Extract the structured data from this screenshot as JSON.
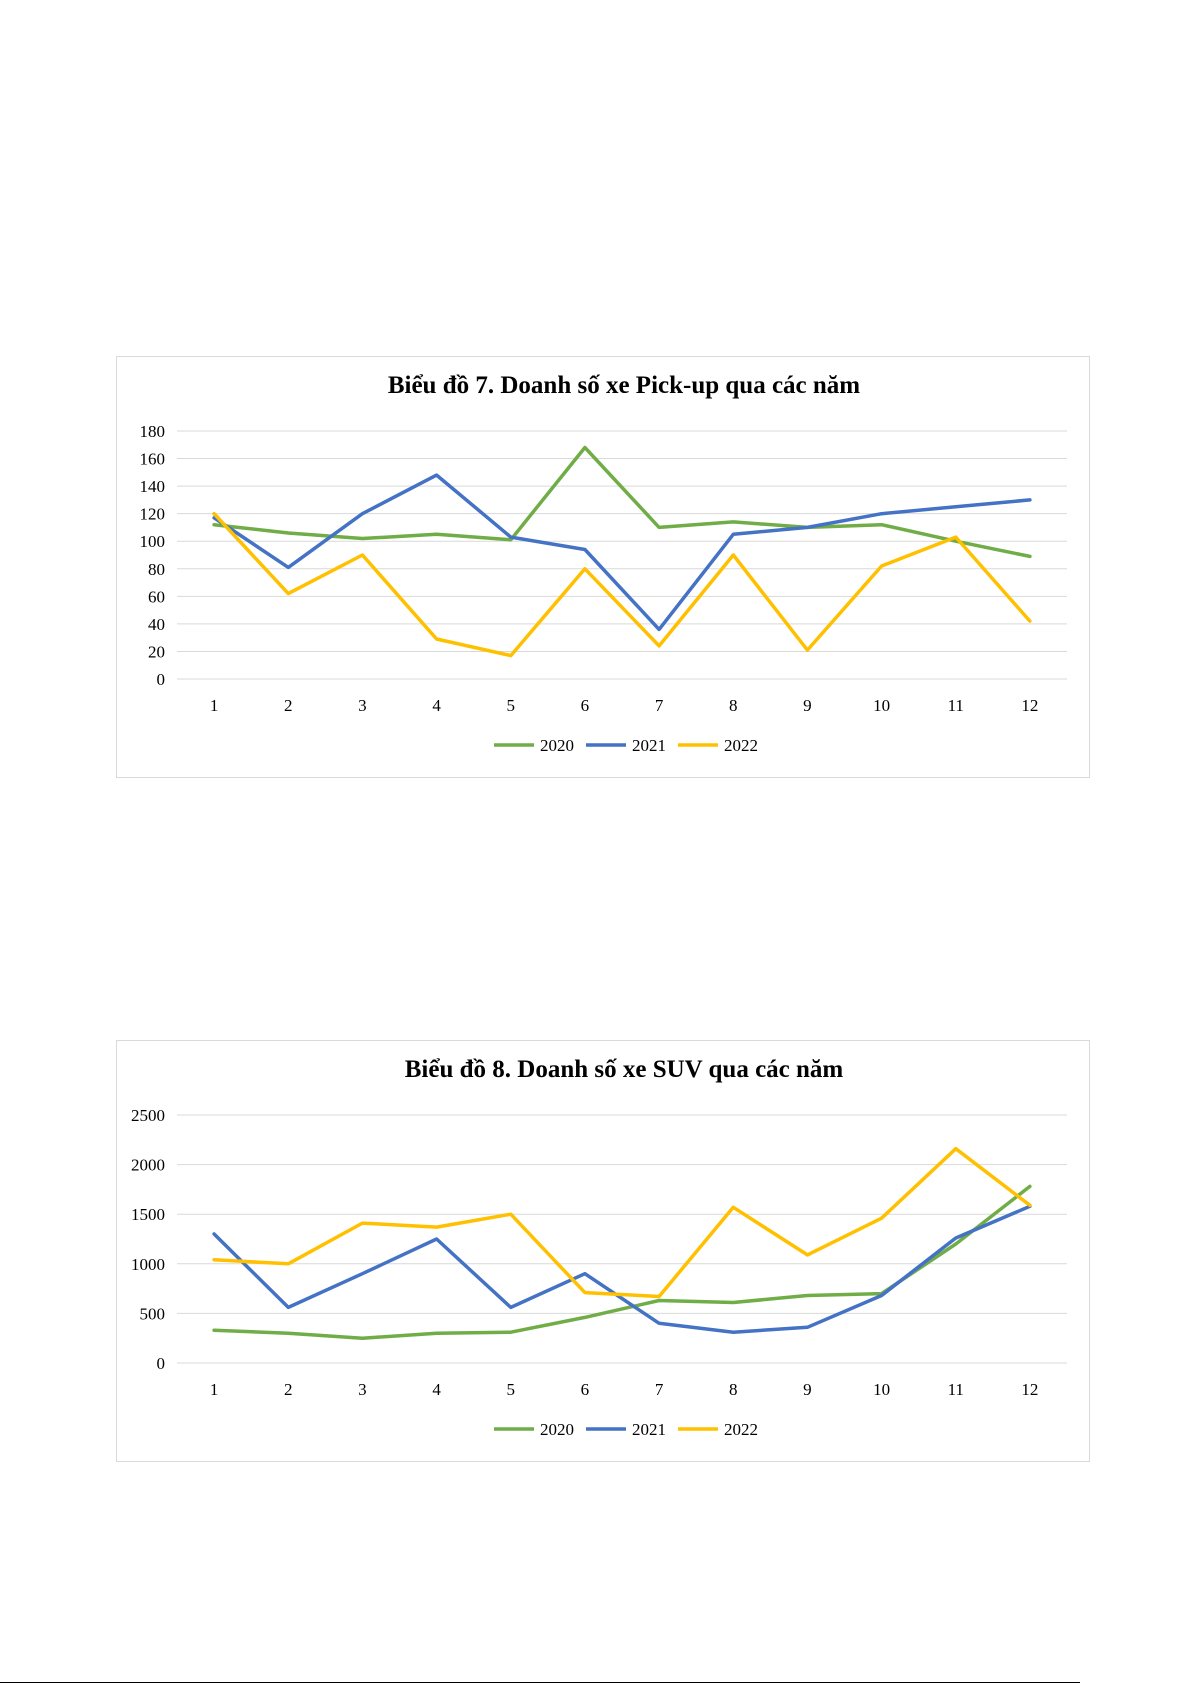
{
  "colors": {
    "2020": "#70ad47",
    "2021": "#4472c4",
    "2022": "#ffc000",
    "grid": "#d9d9d9",
    "text": "#000000"
  },
  "chart_data": [
    {
      "type": "line",
      "title": "Biểu đồ 7. Doanh số xe Pick-up qua các năm",
      "x": [
        "1",
        "2",
        "3",
        "4",
        "5",
        "6",
        "7",
        "8",
        "9",
        "10",
        "11",
        "12"
      ],
      "ylim": [
        0,
        180
      ],
      "yticks": [
        "0",
        "20",
        "40",
        "60",
        "80",
        "100",
        "120",
        "140",
        "160",
        "180"
      ],
      "grid": true,
      "legend": "bottom",
      "series": [
        {
          "name": "2020",
          "color": "#70ad47",
          "values": [
            112,
            106,
            102,
            105,
            101,
            168,
            110,
            114,
            110,
            112,
            100,
            89
          ]
        },
        {
          "name": "2021",
          "color": "#4472c4",
          "values": [
            117,
            81,
            120,
            148,
            103,
            94,
            36,
            105,
            110,
            120,
            125,
            130
          ]
        },
        {
          "name": "2022",
          "color": "#ffc000",
          "values": [
            120,
            62,
            90,
            29,
            17,
            80,
            24,
            90,
            21,
            82,
            103,
            42
          ]
        }
      ]
    },
    {
      "type": "line",
      "title": "Biểu đồ 8. Doanh số xe SUV qua các năm",
      "x": [
        "1",
        "2",
        "3",
        "4",
        "5",
        "6",
        "7",
        "8",
        "9",
        "10",
        "11",
        "12"
      ],
      "ylim": [
        0,
        2500
      ],
      "yticks": [
        "0",
        "500",
        "1000",
        "1500",
        "2000",
        "2500"
      ],
      "grid": true,
      "legend": "bottom",
      "series": [
        {
          "name": "2020",
          "color": "#70ad47",
          "values": [
            330,
            300,
            250,
            300,
            310,
            460,
            630,
            610,
            680,
            700,
            1200,
            1780
          ]
        },
        {
          "name": "2021",
          "color": "#4472c4",
          "values": [
            1300,
            560,
            900,
            1250,
            560,
            900,
            400,
            310,
            360,
            680,
            1260,
            1580
          ]
        },
        {
          "name": "2022",
          "color": "#ffc000",
          "values": [
            1040,
            1000,
            1410,
            1370,
            1500,
            710,
            670,
            1570,
            1090,
            1460,
            2160,
            1590
          ]
        }
      ]
    }
  ]
}
